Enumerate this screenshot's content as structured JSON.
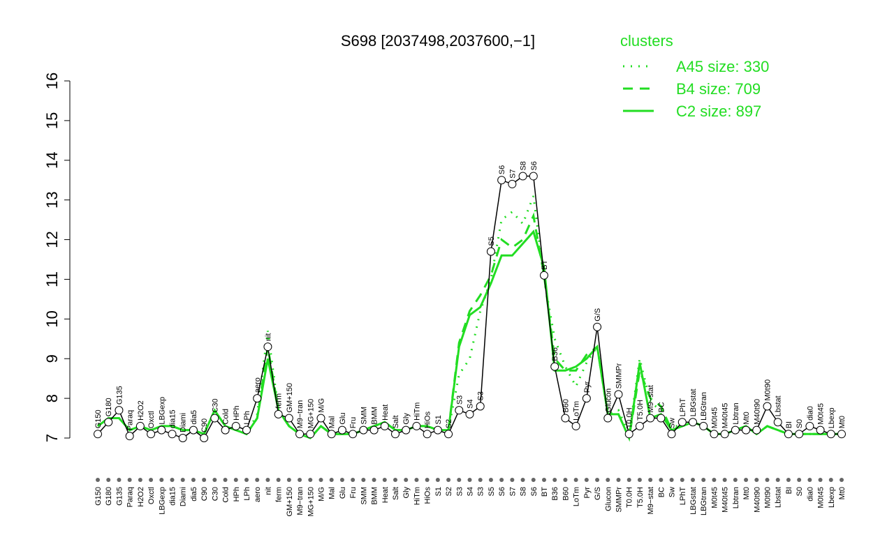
{
  "chart_data": {
    "type": "line",
    "title": "S698 [2037498,2037600,−1]",
    "legend_title": "clusters",
    "legend": "top-right",
    "ylim": [
      7,
      16
    ],
    "yticks": [
      7,
      8,
      9,
      10,
      11,
      12,
      13,
      14,
      15,
      16
    ],
    "categories": [
      "G150",
      "G180",
      "G135",
      "Paraq",
      "H2O2",
      "Oxctl",
      "LBGexp",
      "dia15",
      "Diami",
      "dia5",
      "C90",
      "C30",
      "Cold",
      "HPh",
      "LPh",
      "aero",
      "nit",
      "ferm",
      "GM+150",
      "M9−tran",
      "MG+150",
      "M/G",
      "Mal",
      "Glu",
      "Fru",
      "SMM",
      "BMM",
      "Heat",
      "Salt",
      "Gly",
      "HiTm",
      "HiOs",
      "S1",
      "S2",
      "S3",
      "S4",
      "S3",
      "S5",
      "S6",
      "S7",
      "S8",
      "S6",
      "BT",
      "B36",
      "B60",
      "LoTm",
      "Pyr",
      "G/S",
      "Glucon",
      "SMMPr",
      "T0.0H",
      "T5.0H",
      "M9−stat",
      "BC",
      "Sw",
      "LPhT",
      "LBGstat",
      "LBGtran",
      "M0t45",
      "M40t45",
      "Lbtran",
      "Mt0",
      "M40t90",
      "M0t90",
      "Lbstat",
      "BI",
      "S0",
      "dia0",
      "M0t45",
      "Lbexp",
      "Mt0"
    ],
    "values": [
      7.1,
      7.4,
      7.7,
      7.05,
      7.3,
      7.1,
      7.2,
      7.1,
      7.0,
      7.2,
      7.0,
      7.5,
      7.2,
      7.3,
      7.2,
      8.0,
      9.3,
      7.6,
      7.5,
      7.1,
      7.1,
      7.5,
      7.1,
      7.2,
      7.1,
      7.2,
      7.2,
      7.3,
      7.1,
      7.2,
      7.3,
      7.1,
      7.2,
      7.1,
      7.7,
      7.6,
      7.8,
      11.7,
      13.5,
      13.4,
      13.6,
      13.6,
      11.1,
      8.8,
      7.5,
      7.3,
      8.0,
      9.8,
      7.5,
      8.1,
      7.1,
      7.3,
      7.5,
      7.5,
      7.1,
      7.4,
      7.4,
      7.3,
      7.1,
      7.1,
      7.2,
      7.2,
      7.2,
      7.8,
      7.4,
      7.1,
      7.1,
      7.3,
      7.2,
      7.1,
      7.1
    ],
    "point_color": "#000000",
    "series": [
      {
        "name": "A45 size: 330",
        "color": "#22dd22",
        "dash": "dotted",
        "values": [
          7.3,
          7.5,
          7.5,
          7.2,
          7.3,
          7.2,
          7.3,
          7.3,
          7.2,
          7.2,
          7.1,
          7.7,
          7.3,
          7.2,
          7.1,
          7.6,
          9.7,
          7.7,
          7.3,
          7.1,
          7.0,
          7.3,
          7.1,
          7.1,
          7.1,
          7.2,
          7.3,
          7.4,
          7.2,
          7.2,
          7.3,
          7.3,
          7.2,
          7.2,
          8.6,
          9.0,
          10.2,
          11.0,
          12.5,
          12.7,
          12.4,
          13.1,
          11.0,
          9.5,
          8.8,
          8.3,
          8.9,
          9.3,
          7.6,
          7.7,
          7.1,
          9.0,
          7.9,
          7.7,
          7.3,
          7.3,
          7.4,
          7.3,
          7.1,
          7.1,
          7.2,
          7.3,
          7.1,
          7.3,
          7.2,
          7.1,
          7.1,
          7.1,
          7.1,
          7.1,
          7.1
        ]
      },
      {
        "name": "B4 size: 709",
        "color": "#22dd22",
        "dash": "dashed",
        "values": [
          7.3,
          7.5,
          7.5,
          7.2,
          7.3,
          7.2,
          7.3,
          7.3,
          7.2,
          7.2,
          7.1,
          7.7,
          7.3,
          7.2,
          7.1,
          7.5,
          9.3,
          7.7,
          7.3,
          7.1,
          7.0,
          7.3,
          7.1,
          7.1,
          7.1,
          7.2,
          7.3,
          7.4,
          7.2,
          7.2,
          7.3,
          7.3,
          7.2,
          7.2,
          9.4,
          10.2,
          10.6,
          11.1,
          12.0,
          11.8,
          12.0,
          12.6,
          11.1,
          9.0,
          8.7,
          8.7,
          9.1,
          9.3,
          7.6,
          7.6,
          7.0,
          8.7,
          8.0,
          7.8,
          7.2,
          7.3,
          7.4,
          7.3,
          7.1,
          7.1,
          7.2,
          7.3,
          7.1,
          7.3,
          7.2,
          7.1,
          7.1,
          7.1,
          7.1,
          7.1,
          7.1
        ]
      },
      {
        "name": "C2 size: 897",
        "color": "#22dd22",
        "dash": "solid",
        "values": [
          7.3,
          7.5,
          7.5,
          7.2,
          7.3,
          7.2,
          7.3,
          7.3,
          7.2,
          7.2,
          7.1,
          7.7,
          7.3,
          7.2,
          7.1,
          7.5,
          9.0,
          7.7,
          7.3,
          7.1,
          7.0,
          7.3,
          7.1,
          7.1,
          7.1,
          7.2,
          7.3,
          7.4,
          7.2,
          7.2,
          7.3,
          7.3,
          7.2,
          7.2,
          9.3,
          10.1,
          10.3,
          10.9,
          11.6,
          11.6,
          11.9,
          12.2,
          11.3,
          8.7,
          8.7,
          8.8,
          9.0,
          9.3,
          7.6,
          7.6,
          7.0,
          8.9,
          7.5,
          7.6,
          7.2,
          7.3,
          7.4,
          7.3,
          7.1,
          7.1,
          7.2,
          7.3,
          7.1,
          7.3,
          7.2,
          7.1,
          7.1,
          7.1,
          7.1,
          7.1,
          7.1
        ]
      }
    ]
  }
}
